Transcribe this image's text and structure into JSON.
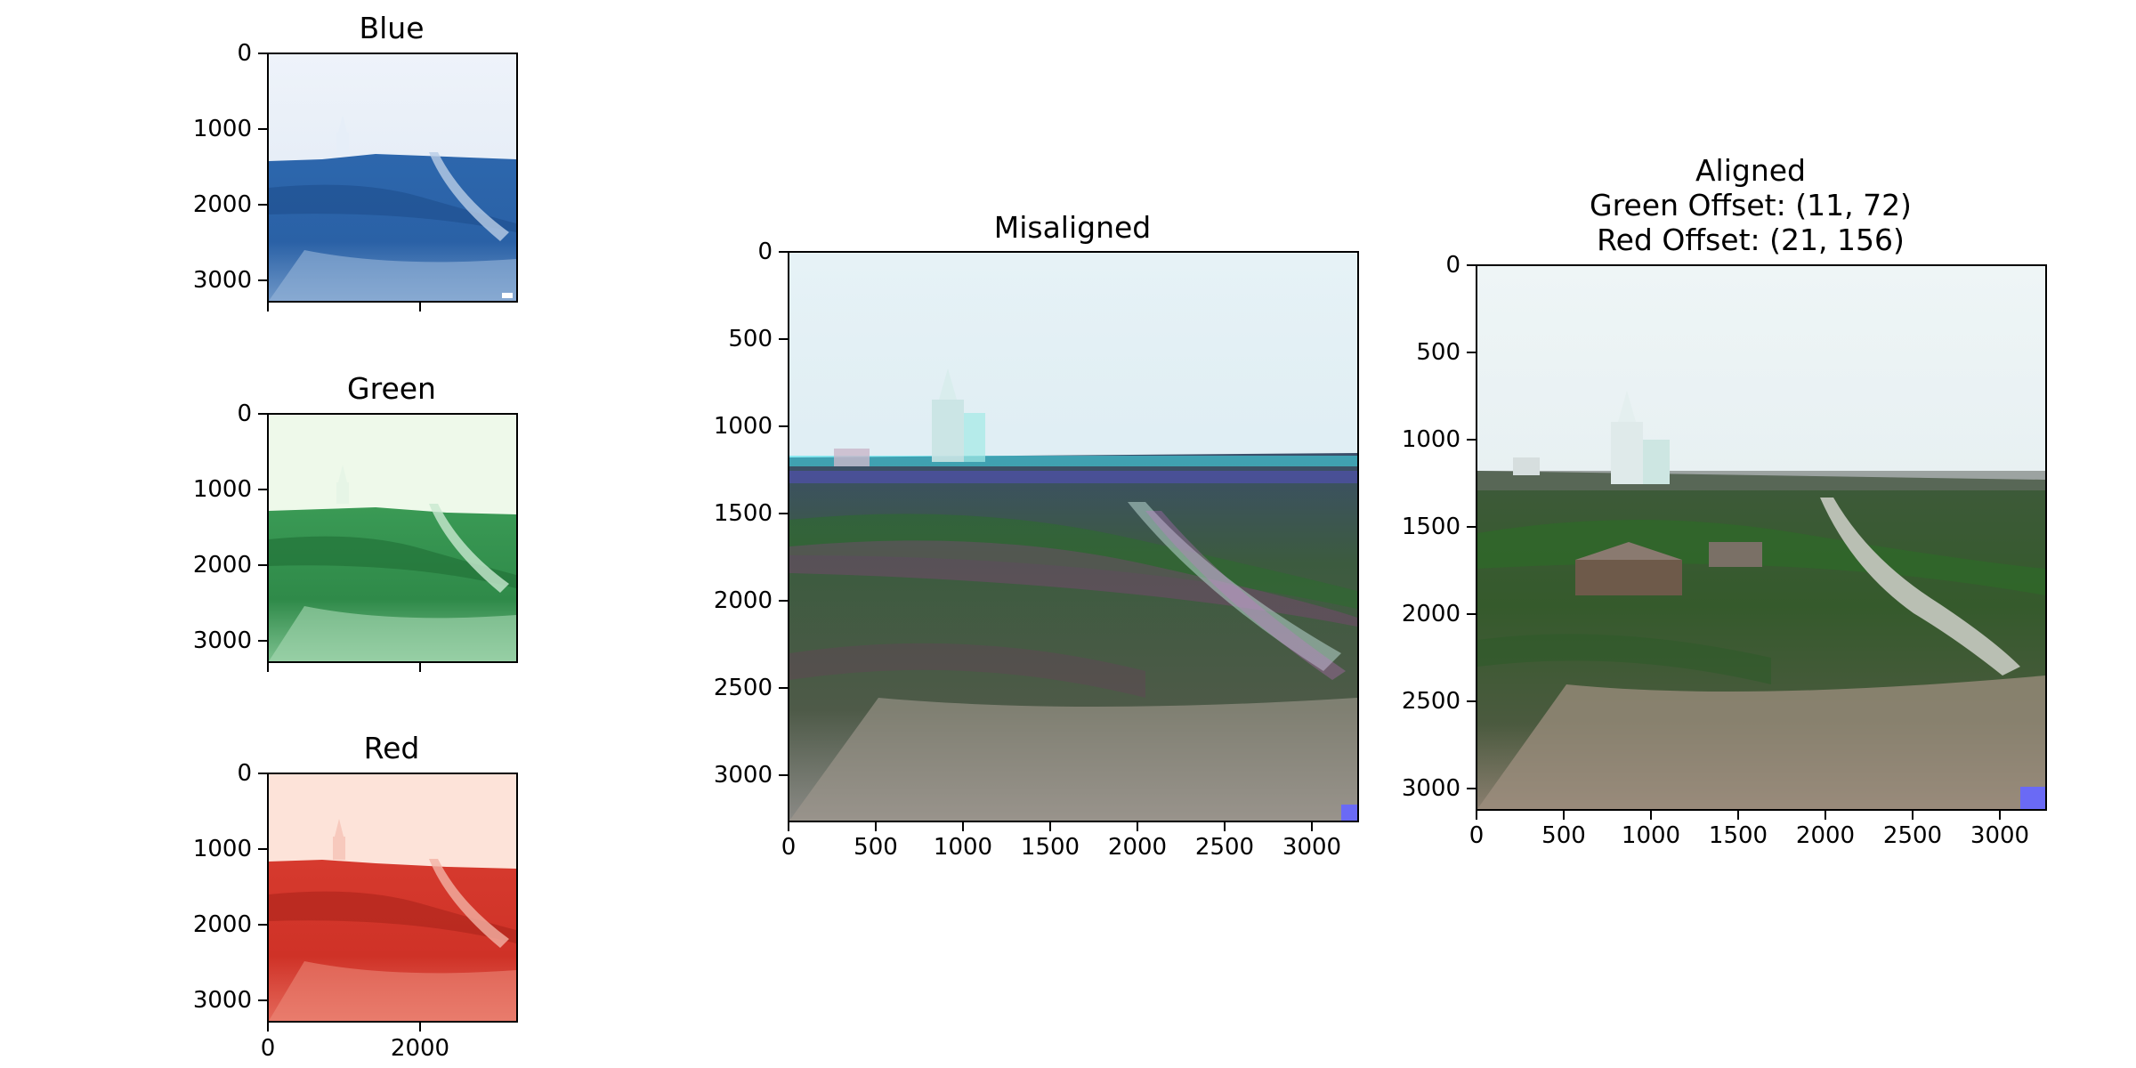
{
  "panels": {
    "blue": {
      "title": "Blue",
      "y_ticks": [
        "0",
        "1000",
        "2000",
        "3000"
      ],
      "x_ticks": [
        "",
        ""
      ]
    },
    "green": {
      "title": "Green",
      "y_ticks": [
        "0",
        "1000",
        "2000",
        "3000"
      ],
      "x_ticks": [
        "",
        ""
      ]
    },
    "red": {
      "title": "Red",
      "y_ticks": [
        "0",
        "1000",
        "2000",
        "3000"
      ],
      "x_ticks": [
        "0",
        "2000"
      ]
    },
    "misaligned": {
      "title": "Misaligned",
      "y_ticks": [
        "0",
        "500",
        "1000",
        "1500",
        "2000",
        "2500",
        "3000"
      ],
      "x_ticks": [
        "0",
        "500",
        "1000",
        "1500",
        "2000",
        "2500",
        "3000"
      ]
    },
    "aligned": {
      "title_line1": "Aligned",
      "title_line2": "Green Offset: (11, 72)",
      "title_line3": "Red Offset: (21, 156)",
      "y_ticks": [
        "0",
        "500",
        "1000",
        "1500",
        "2000",
        "2500",
        "3000"
      ],
      "x_ticks": [
        "0",
        "500",
        "1000",
        "1500",
        "2000",
        "2500",
        "3000"
      ]
    }
  },
  "colors": {
    "blue_channel": "#1f5fa8",
    "green_channel": "#2e8b45",
    "red_channel": "#d8342a"
  }
}
